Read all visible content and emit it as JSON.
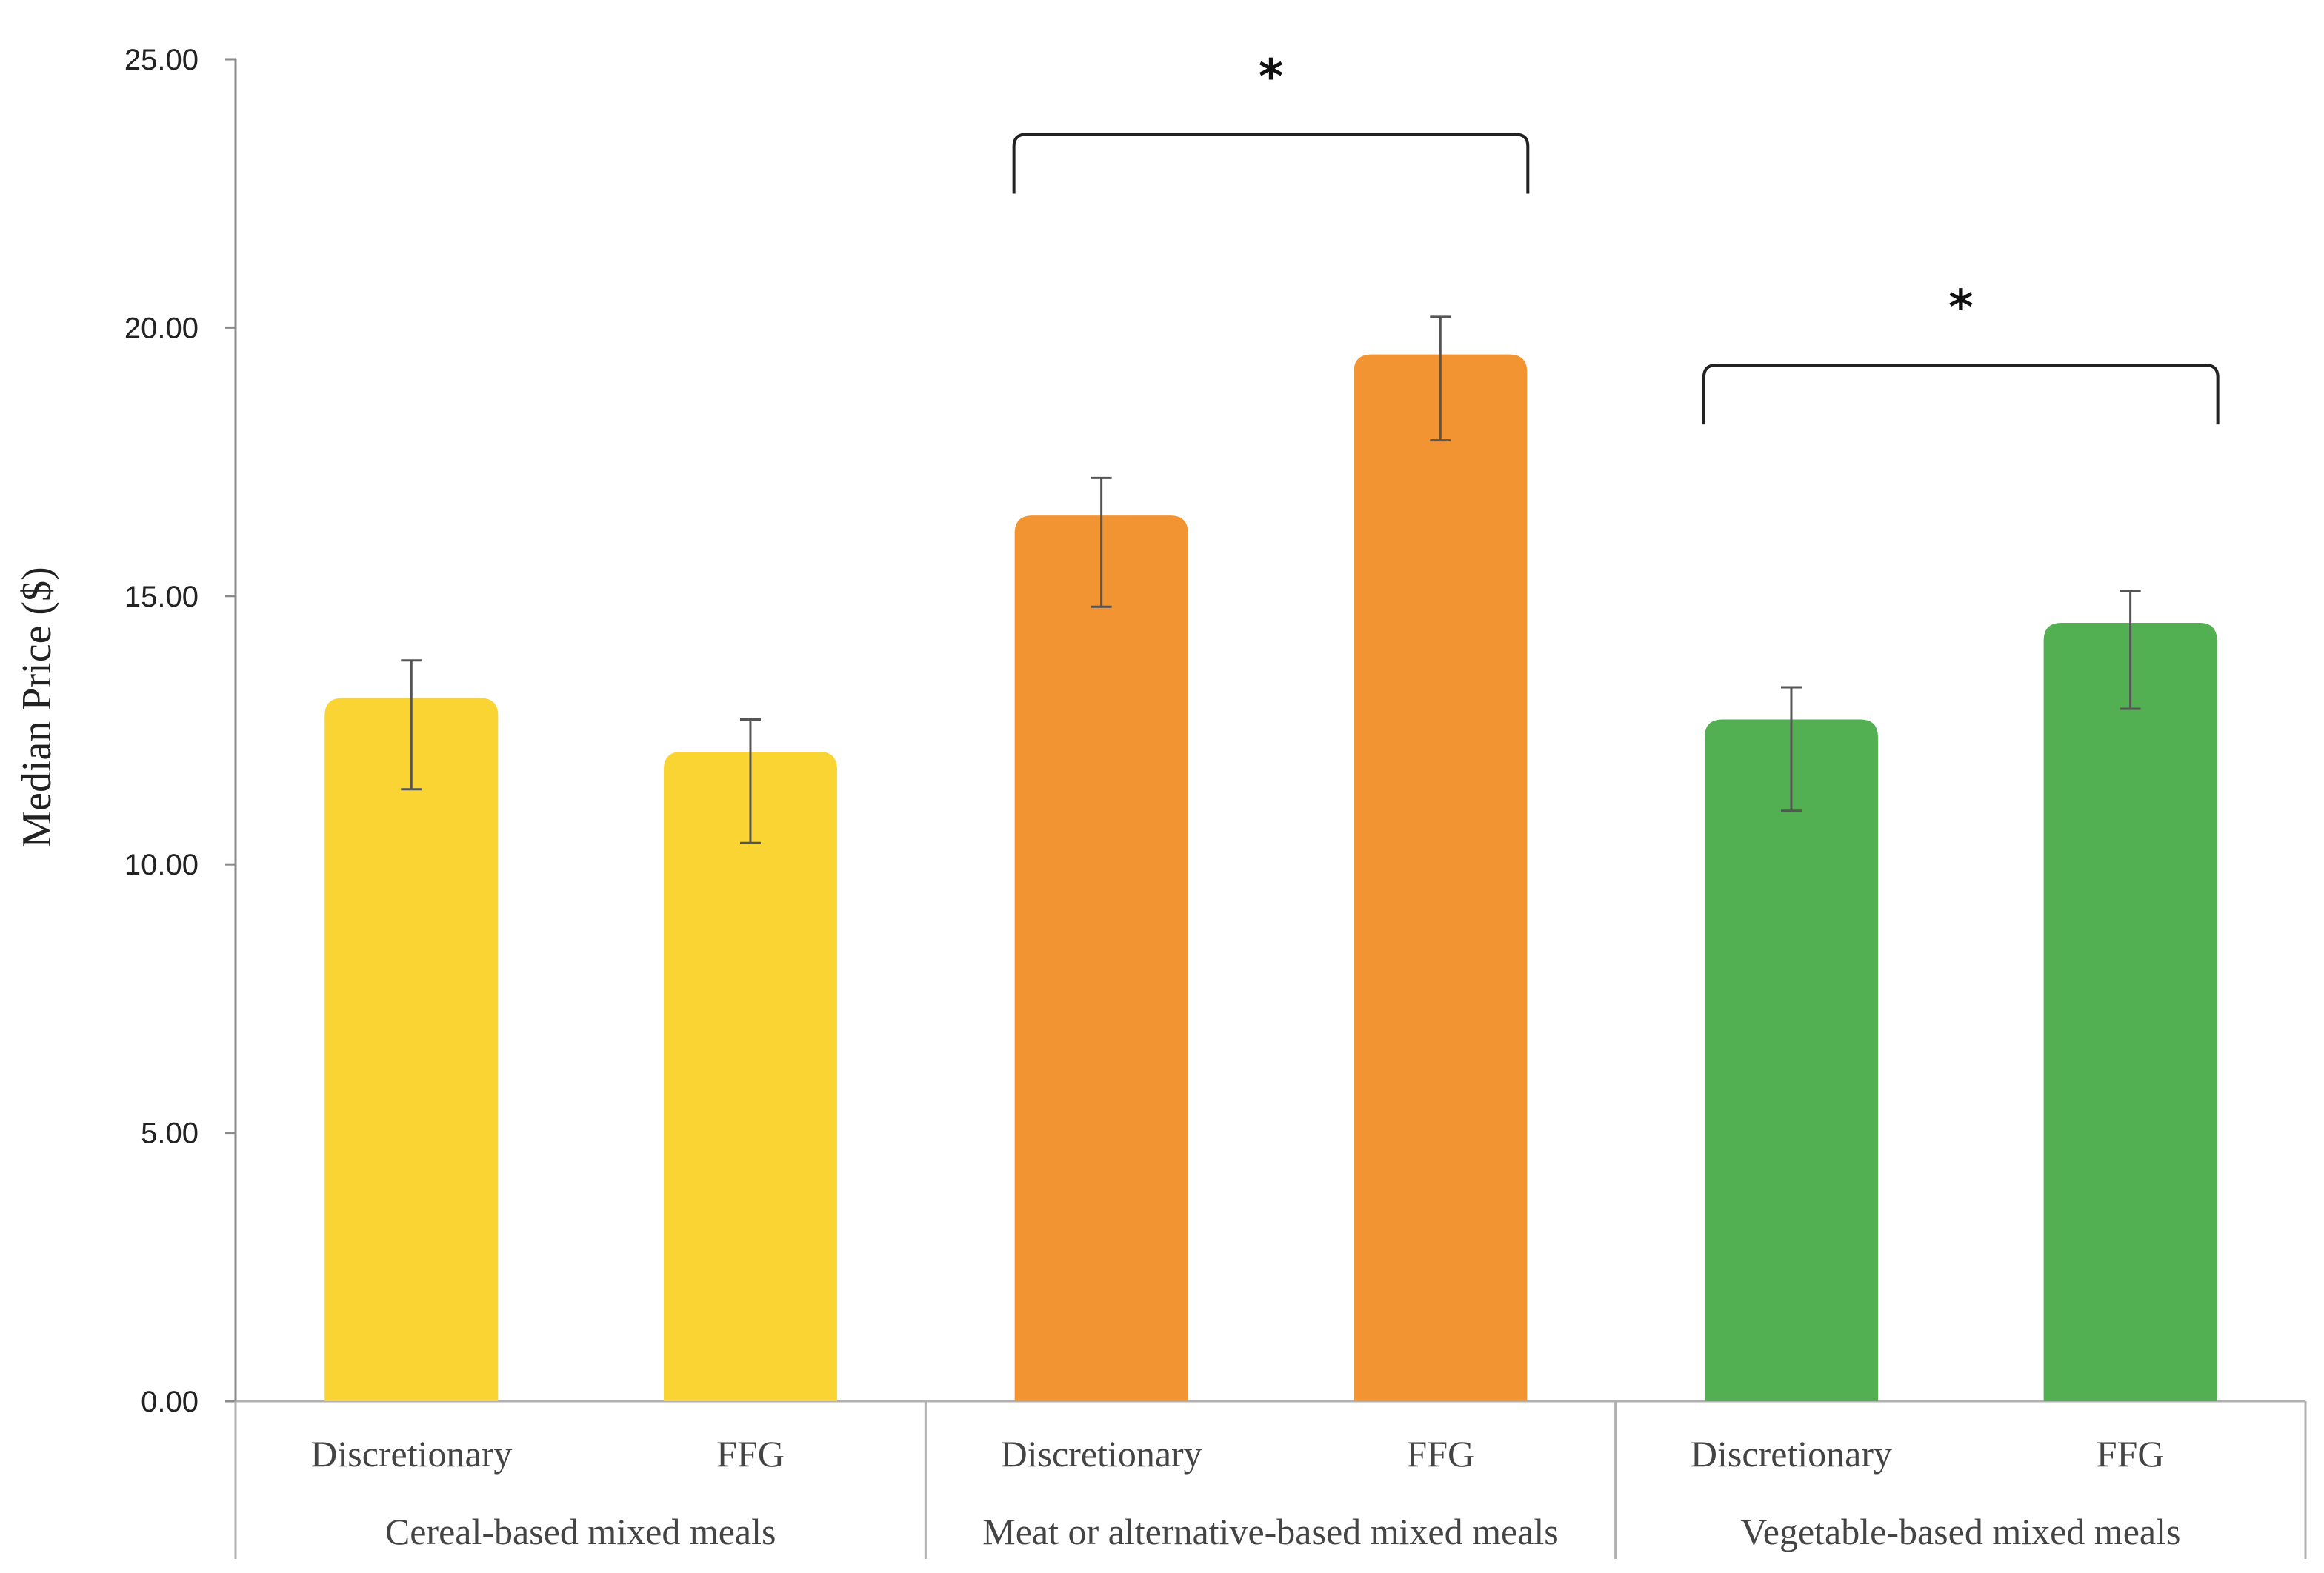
{
  "chart_data": {
    "type": "bar",
    "title": "",
    "xlabel": "",
    "ylabel": "Median  Price ($)",
    "ylim": [
      0,
      25
    ],
    "yticks": [
      "0.00",
      "5.00",
      "10.00",
      "15.00",
      "20.00",
      "25.00"
    ],
    "grid": false,
    "groups": [
      {
        "name": "Cereal-based mixed meals",
        "color": "#fad432",
        "bars": [
          {
            "label": "Discretionary",
            "value": 13.1,
            "err_low": 11.4,
            "err_high": 13.8
          },
          {
            "label": "FFG",
            "value": 12.1,
            "err_low": 10.4,
            "err_high": 12.7
          }
        ],
        "significant": false
      },
      {
        "name": "Meat or alternative-based mixed meals",
        "color": "#f29432",
        "bars": [
          {
            "label": "Discretionary",
            "value": 16.5,
            "err_low": 14.8,
            "err_high": 17.2
          },
          {
            "label": "FFG",
            "value": 19.5,
            "err_low": 17.9,
            "err_high": 20.2
          }
        ],
        "significant": true,
        "significance_label": "*",
        "bracket_level": 23.6
      },
      {
        "name": "Vegetable-based mixed meals",
        "color": "#52b052",
        "bars": [
          {
            "label": "Discretionary",
            "value": 12.7,
            "err_low": 11.0,
            "err_high": 13.3
          },
          {
            "label": "FFG",
            "value": 14.5,
            "err_low": 12.9,
            "err_high": 15.1
          }
        ],
        "significant": true,
        "significance_label": "*",
        "bracket_level": 19.3
      }
    ]
  }
}
